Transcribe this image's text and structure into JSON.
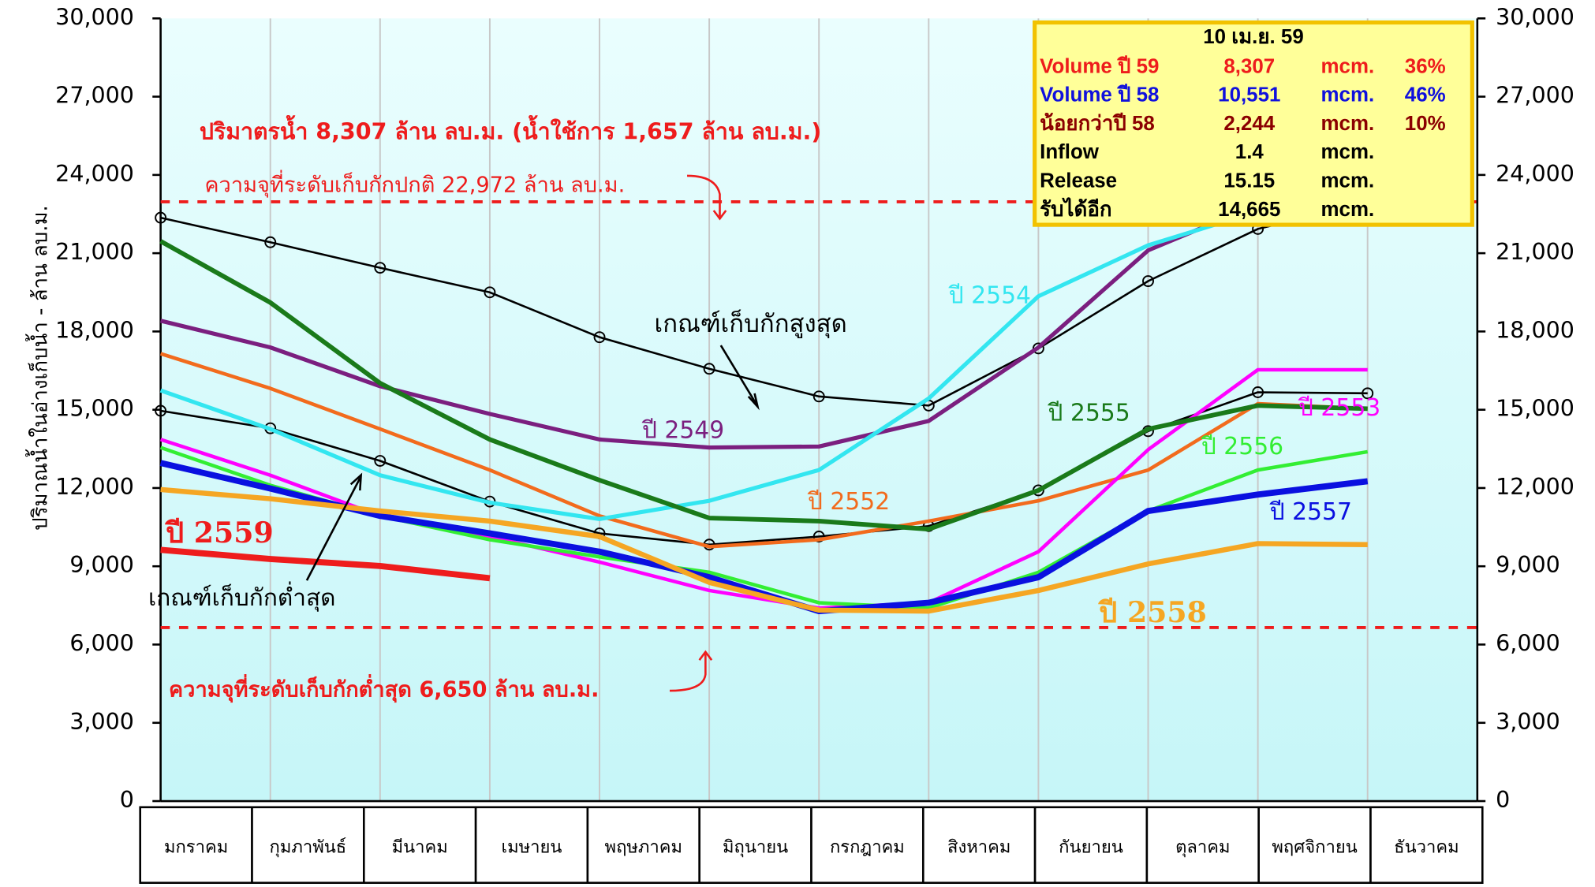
{
  "chart_data": {
    "type": "line",
    "y_axis_label": "ปริมาณน้ำในอ่างเก็บน้ำ - ล้าน ลบ.ม.",
    "categories": [
      "มกราคม",
      "กุมภาพันธ์",
      "มีนาคม",
      "เมษายน",
      "พฤษภาคม",
      "มิถุนายน",
      "กรกฎาคม",
      "สิงหาคม",
      "กันยายน",
      "ตุลาคม",
      "พฤศจิกายน",
      "ธันวาคม"
    ],
    "ylim": [
      0,
      30000
    ],
    "yticks": [
      0,
      {
        "value": 3000,
        "label": "3,000"
      },
      {
        "value": 6000,
        "label": "6,000"
      },
      {
        "value": 9000,
        "label": "9,000"
      },
      {
        "value": 12000,
        "label": "12,000"
      },
      {
        "value": 15000,
        "label": "15,000"
      },
      {
        "value": 18000,
        "label": "18,000"
      },
      {
        "value": 21000,
        "label": "21,000"
      },
      {
        "value": 24000,
        "label": "24,000"
      },
      {
        "value": 27000,
        "label": "27,000"
      },
      {
        "value": 30000,
        "label": "30,000"
      }
    ],
    "y2lim": [
      0,
      30000
    ],
    "y2ticks": [
      0,
      {
        "value": 3000,
        "label": "3,000"
      },
      {
        "value": 6000,
        "label": "6,000"
      },
      {
        "value": 9000,
        "label": "9,000"
      },
      {
        "value": 12000,
        "label": "12,000"
      },
      {
        "value": 15000,
        "label": "15,000"
      },
      {
        "value": 18000,
        "label": "18,000"
      },
      {
        "value": 21000,
        "label": "21,000"
      },
      {
        "value": 24000,
        "label": "24,000"
      },
      {
        "value": 27000,
        "label": "27,000"
      },
      {
        "value": 30000,
        "label": "30,000"
      }
    ],
    "grid": true,
    "series": [
      {
        "name": "เกณฑ์เก็บกักสูงสุด",
        "color": "#000000",
        "marker": "circle",
        "values": [
          22360,
          21420,
          20440,
          19500,
          17780,
          16570,
          15510,
          15160,
          17350,
          19930,
          21930,
          22950
        ]
      },
      {
        "name": "เกณฑ์เก็บกักต่ำสุด",
        "color": "#000000",
        "marker": "circle",
        "values": [
          14960,
          14290,
          13040,
          11480,
          10260,
          9830,
          10140,
          10540,
          11910,
          14180,
          15670,
          15630
        ]
      },
      {
        "name": "ปี 2549",
        "color": "#7b1f7f",
        "values": [
          18410,
          17390,
          15900,
          14840,
          13860,
          13550,
          13590,
          14570,
          17390,
          21110,
          22870,
          22870
        ]
      },
      {
        "name": "ปี 2552",
        "color": "#f26b1d",
        "values": [
          17150,
          15820,
          14260,
          12690,
          10930,
          9750,
          10020,
          10730,
          11510,
          12690,
          15230,
          15040
        ]
      },
      {
        "name": "ปี 2553",
        "color": "#ff00ff",
        "values": [
          13860,
          12490,
          10930,
          10140,
          9160,
          8070,
          7400,
          7600,
          9560,
          13470,
          16530,
          16530
        ]
      },
      {
        "name": "ปี 2554",
        "color": "#33e6f0",
        "values": [
          15740,
          14260,
          12490,
          11440,
          10810,
          11510,
          12690,
          15430,
          19350,
          21300,
          22600,
          22600
        ]
      },
      {
        "name": "ปี 2555",
        "color": "#1a7a1a",
        "values": [
          21460,
          19110,
          16020,
          13860,
          12300,
          10850,
          10730,
          10420,
          11910,
          14260,
          15160,
          15040
        ]
      },
      {
        "name": "ปี 2556",
        "color": "#33ee33",
        "values": [
          13550,
          12100,
          10930,
          10020,
          9360,
          8770,
          7600,
          7400,
          8770,
          11120,
          12690,
          13390
        ]
      },
      {
        "name": "ปี 2557",
        "color": "#0a10e0",
        "values": [
          12960,
          11980,
          10930,
          10260,
          9560,
          8580,
          7280,
          7600,
          8580,
          11120,
          11750,
          12260
        ]
      },
      {
        "name": "ปี 2558",
        "color": "#f5a623",
        "values": [
          11940,
          11590,
          11120,
          10730,
          10140,
          8380,
          7320,
          7280,
          8070,
          9090,
          9870,
          9830
        ]
      },
      {
        "name": "ปี 2559",
        "color": "#ee1c1c",
        "values": [
          9630,
          9280,
          9010,
          8540,
          null,
          null,
          null,
          null,
          null,
          null,
          null,
          null
        ]
      }
    ],
    "reference_lines": [
      {
        "value": 22972,
        "label": "ความจุที่ระดับเก็บกักปกติ 22,972 ล้าน ลบ.ม."
      },
      {
        "value": 6650,
        "label": "ความจุที่ระดับเก็บกักต่ำสุด 6,650 ล้าน ลบ.ม."
      }
    ],
    "annotation": "ปริมาตรน้ำ 8,307 ล้าน ลบ.ม. (น้ำใช้การ 1,657 ล้าน ลบ.ม.)",
    "info_box": {
      "title": "10 เม.ย. 59",
      "rows": [
        [
          "Volume ปี 59",
          "8,307",
          "mcm.",
          "36%"
        ],
        [
          "Volume ปี 58",
          "10,551",
          "mcm.",
          "46%"
        ],
        [
          "น้อยกว่าปี 58",
          "2,244",
          "mcm.",
          "10%"
        ],
        [
          "Inflow",
          "1.4",
          "mcm."
        ],
        [
          "Release",
          "15.15",
          "mcm."
        ],
        [
          "รับได้อีก",
          "14,665",
          "mcm."
        ]
      ]
    }
  }
}
